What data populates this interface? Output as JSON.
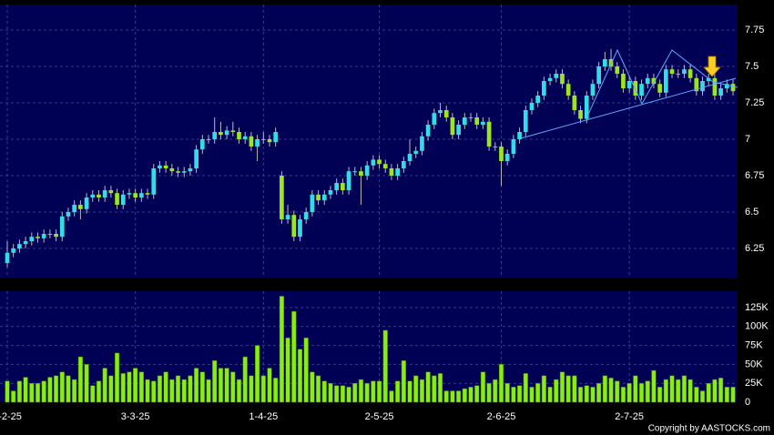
{
  "chart_data": {
    "type": "candlestick",
    "categories": [
      "2-2-25",
      null,
      null,
      null,
      null,
      null,
      null,
      null,
      null,
      null,
      null,
      null,
      null,
      null,
      null,
      null,
      null,
      null,
      null,
      null,
      null,
      "3-3-25",
      null,
      null,
      null,
      null,
      null,
      null,
      null,
      null,
      null,
      null,
      null,
      null,
      null,
      null,
      null,
      null,
      null,
      null,
      null,
      null,
      "1-4-25",
      null,
      null,
      null,
      null,
      null,
      null,
      null,
      null,
      null,
      null,
      null,
      null,
      null,
      null,
      null,
      null,
      null,
      null,
      "2-5-25",
      null,
      null,
      null,
      null,
      null,
      null,
      null,
      null,
      null,
      null,
      null,
      null,
      null,
      null,
      null,
      null,
      null,
      null,
      null,
      "2-6-25",
      null,
      null,
      null,
      null,
      null,
      null,
      null,
      null,
      null,
      null,
      null,
      null,
      null,
      null,
      null,
      null,
      null,
      null,
      null,
      null,
      "2-7-25",
      null,
      null,
      null,
      null,
      null,
      null,
      null,
      null,
      null,
      null,
      null,
      null,
      null,
      null,
      null,
      null,
      null
    ],
    "open": [
      6.15,
      6.22,
      6.25,
      6.28,
      6.3,
      6.33,
      6.32,
      6.35,
      6.35,
      6.33,
      6.47,
      6.5,
      6.55,
      6.52,
      6.6,
      6.62,
      6.6,
      6.65,
      6.63,
      6.55,
      6.62,
      6.63,
      6.6,
      6.63,
      6.62,
      6.8,
      6.82,
      6.8,
      6.78,
      6.77,
      6.78,
      6.8,
      6.93,
      7.0,
      7.0,
      7.05,
      7.03,
      7.06,
      7.05,
      7.0,
      7.02,
      6.95,
      7.0,
      7.0,
      6.98,
      6.75,
      6.45,
      6.48,
      6.33,
      6.45,
      6.5,
      6.62,
      6.58,
      6.62,
      6.65,
      6.7,
      6.65,
      6.78,
      6.78,
      6.75,
      6.82,
      6.86,
      6.83,
      6.8,
      6.75,
      6.8,
      6.85,
      6.9,
      6.92,
      7.02,
      7.1,
      7.18,
      7.2,
      7.15,
      7.03,
      7.1,
      7.15,
      7.15,
      7.1,
      7.12,
      6.95,
      6.95,
      6.85,
      6.9,
      7.0,
      7.05,
      7.2,
      7.25,
      7.3,
      7.4,
      7.42,
      7.45,
      7.38,
      7.3,
      7.2,
      7.14,
      7.3,
      7.38,
      7.5,
      7.55,
      7.5,
      7.45,
      7.35,
      7.4,
      7.3,
      7.38,
      7.42,
      7.38,
      7.32,
      7.48,
      7.45,
      7.45,
      7.48,
      7.42,
      7.33,
      7.4,
      7.42,
      7.3,
      7.35,
      7.38
    ],
    "high": [
      6.3,
      6.28,
      6.31,
      6.33,
      6.36,
      6.36,
      6.38,
      6.38,
      6.38,
      6.5,
      6.53,
      6.58,
      6.58,
      6.63,
      6.65,
      6.65,
      6.68,
      6.68,
      6.66,
      6.65,
      6.66,
      6.66,
      6.66,
      6.66,
      6.83,
      6.85,
      6.85,
      6.83,
      6.81,
      6.81,
      6.83,
      6.96,
      7.03,
      7.03,
      7.15,
      7.12,
      7.09,
      7.12,
      7.08,
      7.05,
      7.05,
      7.03,
      7.05,
      7.03,
      7.08,
      6.78,
      6.55,
      6.51,
      6.48,
      6.53,
      6.65,
      6.65,
      6.65,
      6.68,
      6.73,
      6.73,
      6.81,
      6.81,
      6.81,
      6.85,
      6.89,
      6.89,
      6.86,
      6.83,
      6.83,
      6.88,
      7.0,
      6.95,
      7.05,
      7.13,
      7.21,
      7.25,
      7.23,
      7.18,
      7.13,
      7.18,
      7.18,
      7.18,
      7.15,
      7.15,
      6.98,
      6.98,
      6.93,
      7.03,
      7.08,
      7.23,
      7.28,
      7.33,
      7.43,
      7.45,
      7.48,
      7.48,
      7.41,
      7.33,
      7.23,
      7.33,
      7.41,
      7.53,
      7.6,
      7.62,
      7.53,
      7.48,
      7.43,
      7.43,
      7.41,
      7.45,
      7.45,
      7.41,
      7.51,
      7.51,
      7.48,
      7.51,
      7.51,
      7.45,
      7.43,
      7.45,
      7.45,
      7.38,
      7.41,
      7.41
    ],
    "low": [
      6.12,
      6.19,
      6.22,
      6.25,
      6.27,
      6.29,
      6.29,
      6.32,
      6.3,
      6.3,
      6.44,
      6.47,
      6.45,
      6.49,
      6.57,
      6.57,
      6.57,
      6.6,
      6.52,
      6.52,
      6.59,
      6.57,
      6.57,
      6.59,
      6.59,
      6.77,
      6.77,
      6.75,
      6.74,
      6.74,
      6.75,
      6.77,
      6.9,
      6.97,
      6.97,
      7.0,
      7.0,
      7.02,
      6.97,
      6.97,
      6.92,
      6.85,
      6.97,
      6.95,
      6.95,
      6.42,
      6.42,
      6.3,
      6.3,
      6.42,
      6.47,
      6.55,
      6.55,
      6.59,
      6.62,
      6.62,
      6.62,
      6.75,
      6.55,
      6.72,
      6.79,
      6.8,
      6.77,
      6.72,
      6.72,
      6.77,
      6.82,
      6.87,
      6.89,
      6.99,
      7.07,
      7.15,
      7.12,
      7.0,
      7.0,
      7.07,
      7.12,
      7.07,
      7.07,
      6.92,
      6.92,
      6.68,
      6.82,
      6.87,
      6.97,
      7.02,
      7.17,
      7.22,
      7.27,
      7.37,
      7.39,
      7.35,
      7.27,
      7.17,
      7.11,
      7.11,
      7.27,
      7.35,
      7.47,
      7.47,
      7.42,
      7.32,
      7.32,
      7.27,
      7.27,
      7.35,
      7.35,
      7.29,
      7.29,
      7.42,
      7.42,
      7.42,
      7.39,
      7.3,
      7.3,
      7.37,
      7.27,
      7.27,
      7.32,
      7.3
    ],
    "close": [
      6.22,
      6.25,
      6.28,
      6.3,
      6.33,
      6.32,
      6.35,
      6.35,
      6.33,
      6.47,
      6.5,
      6.55,
      6.52,
      6.6,
      6.62,
      6.6,
      6.65,
      6.63,
      6.55,
      6.62,
      6.63,
      6.6,
      6.63,
      6.62,
      6.8,
      6.82,
      6.8,
      6.78,
      6.77,
      6.78,
      6.8,
      6.93,
      7.0,
      7.0,
      7.05,
      7.03,
      7.06,
      7.05,
      7.0,
      7.02,
      6.95,
      7.0,
      7.0,
      6.98,
      7.05,
      6.45,
      6.48,
      6.33,
      6.45,
      6.5,
      6.62,
      6.58,
      6.62,
      6.65,
      6.7,
      6.65,
      6.78,
      6.78,
      6.75,
      6.82,
      6.86,
      6.83,
      6.8,
      6.75,
      6.8,
      6.85,
      6.9,
      6.92,
      7.02,
      7.1,
      7.18,
      7.2,
      7.15,
      7.03,
      7.1,
      7.15,
      7.15,
      7.1,
      7.12,
      6.95,
      6.95,
      6.85,
      6.9,
      7.0,
      7.05,
      7.2,
      7.25,
      7.3,
      7.4,
      7.42,
      7.45,
      7.38,
      7.3,
      7.2,
      7.14,
      7.3,
      7.38,
      7.5,
      7.55,
      7.5,
      7.45,
      7.35,
      7.4,
      7.3,
      7.38,
      7.42,
      7.38,
      7.32,
      7.48,
      7.45,
      7.45,
      7.48,
      7.42,
      7.33,
      7.4,
      7.42,
      7.3,
      7.35,
      7.38,
      7.33
    ],
    "ylim": [
      6.05,
      7.925
    ],
    "yticks": [
      6.25,
      6.5,
      6.75,
      7,
      7.25,
      7.5,
      7.75
    ],
    "up_color": "#33dde8",
    "down_color": "#9be61e",
    "grid": true,
    "volume": {
      "values": [
        28000,
        15000,
        28000,
        33000,
        25000,
        25000,
        28000,
        33000,
        35000,
        40000,
        35000,
        30000,
        60000,
        50000,
        22000,
        28000,
        45000,
        35000,
        65000,
        38000,
        40000,
        45000,
        40000,
        30000,
        28000,
        35000,
        40000,
        30000,
        35000,
        30000,
        35000,
        45000,
        40000,
        30000,
        55000,
        45000,
        45000,
        40000,
        30000,
        60000,
        35000,
        75000,
        35000,
        45000,
        32000,
        140000,
        85000,
        120000,
        70000,
        85000,
        40000,
        35000,
        28000,
        25000,
        22000,
        22000,
        20000,
        25000,
        30000,
        25000,
        28000,
        28000,
        95000,
        15000,
        28000,
        55000,
        28000,
        35000,
        30000,
        40000,
        35000,
        38000,
        15000,
        15000,
        15000,
        18000,
        20000,
        22000,
        40000,
        25000,
        30000,
        50000,
        25000,
        20000,
        22000,
        38000,
        20000,
        25000,
        35000,
        20000,
        30000,
        40000,
        35000,
        35000,
        20000,
        22000,
        20000,
        25000,
        35000,
        32000,
        28000,
        20000,
        25000,
        35000,
        25000,
        28000,
        42000,
        20000,
        30000,
        35000,
        30000,
        35000,
        30000,
        20000,
        15000,
        25000,
        30000,
        32000,
        20000,
        20000
      ],
      "color": "#88ee11",
      "ylim": [
        0,
        146600
      ],
      "yticks": [
        0,
        {
          "value": 25000,
          "label": "25K"
        },
        {
          "value": 50000,
          "label": "50K"
        },
        {
          "value": 75000,
          "label": "75K"
        },
        {
          "value": 100000,
          "label": "100K"
        },
        {
          "value": 125000,
          "label": "125K"
        }
      ]
    },
    "copyright": "Copyright by AASTOCKS.com"
  }
}
